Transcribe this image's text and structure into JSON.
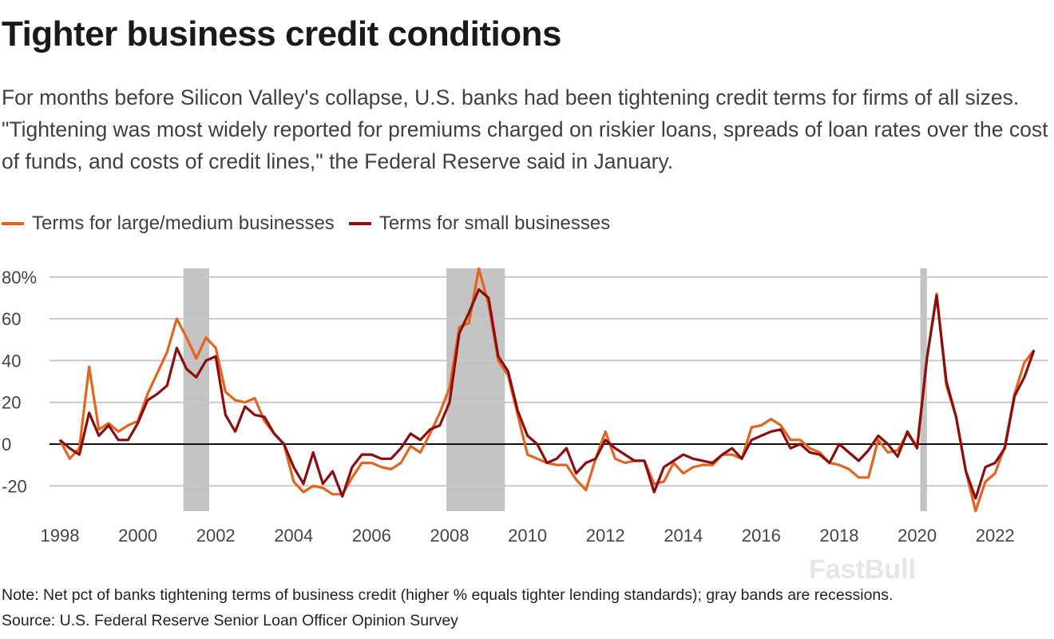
{
  "title": "Tighter business credit conditions",
  "subtitle": "For months before Silicon Valley's collapse, U.S. banks had been tightening credit terms for firms of all sizes. \"Tightening was most widely reported for premiums charged on riskier loans, spreads of loan rates over the cost of funds, and costs of credit lines,\" the Federal Reserve said in January.",
  "note": "Note: Net pct of banks tightening terms of business credit (higher % equals tighter lending standards); gray bands are recessions.",
  "source": "Source: U.S. Federal Reserve Senior Loan Officer Opinion Survey",
  "watermark": "FastBull",
  "chart_data": {
    "type": "line",
    "title": "Tighter business credit conditions",
    "frequency": "quarterly",
    "x_start": 1998,
    "x_tick_labels": [
      "1998",
      "2000",
      "2002",
      "2004",
      "2006",
      "2008",
      "2010",
      "2012",
      "2014",
      "2016",
      "2018",
      "2020",
      "2022"
    ],
    "y_tick_labels": [
      "80%",
      "60",
      "40",
      "20",
      "0",
      "-20"
    ],
    "y_ticks": [
      80,
      60,
      40,
      20,
      0,
      -20
    ],
    "ylim": [
      -32,
      84
    ],
    "xlim": [
      1998,
      2023
    ],
    "grid": true,
    "legend_placement": "top-left",
    "recessions": [
      [
        2001.17,
        2001.83
      ],
      [
        2007.92,
        2009.42
      ],
      [
        2020.08,
        2020.25
      ]
    ],
    "series": [
      {
        "name": "Terms for large/medium businesses",
        "color": "#e2641e",
        "values": [
          2,
          -7,
          -2,
          37,
          7,
          10,
          6,
          9,
          11,
          24,
          34,
          44,
          60,
          51,
          41,
          51,
          46,
          25,
          21,
          20,
          22,
          11,
          5,
          0,
          -18,
          -23,
          -20,
          -21,
          -24,
          -24,
          -16,
          -9,
          -9,
          -11,
          -12,
          -9,
          -1,
          -4,
          5,
          15,
          27,
          56,
          58,
          84,
          67,
          40,
          33,
          14,
          -5,
          -7,
          -9,
          -10,
          -10,
          -17,
          -22,
          -7,
          6,
          -7,
          -9,
          -8,
          -8,
          -19,
          -18,
          -9,
          -14,
          -11,
          -10,
          -10,
          -5,
          -5,
          -7,
          8,
          9,
          12,
          9,
          2,
          2,
          -2,
          -4,
          -9,
          -10,
          -12,
          -16,
          -16,
          2,
          -4,
          -3,
          5,
          -1,
          41,
          72,
          28,
          13,
          -13,
          -32,
          -18,
          -14,
          -1,
          24,
          39,
          45
        ]
      },
      {
        "name": "Terms for small businesses",
        "color": "#8b0d0d",
        "values": [
          2,
          -2,
          -5,
          15,
          4,
          9,
          2,
          2,
          10,
          21,
          24,
          28,
          46,
          36,
          32,
          40,
          42,
          14,
          6,
          18,
          14,
          13,
          5,
          0,
          -11,
          -19,
          -4,
          -19,
          -13,
          -25,
          -11,
          -5,
          -5,
          -7,
          -7,
          -2,
          5,
          2,
          7,
          9,
          20,
          53,
          63,
          74,
          70,
          42,
          35,
          16,
          4,
          0,
          -9,
          -7,
          -2,
          -14,
          -9,
          -7,
          2,
          -2,
          -5,
          -8,
          -8,
          -23,
          -11,
          -8,
          -5,
          -7,
          -8,
          -9,
          -5,
          -2,
          -7,
          2,
          4,
          6,
          7,
          -2,
          0,
          -4,
          -5,
          -9,
          0,
          -4,
          -8,
          -3,
          4,
          0,
          -6,
          6,
          -2,
          41,
          71,
          30,
          13,
          -13,
          -26,
          -11,
          -9,
          -2,
          23,
          32,
          45
        ]
      }
    ]
  }
}
